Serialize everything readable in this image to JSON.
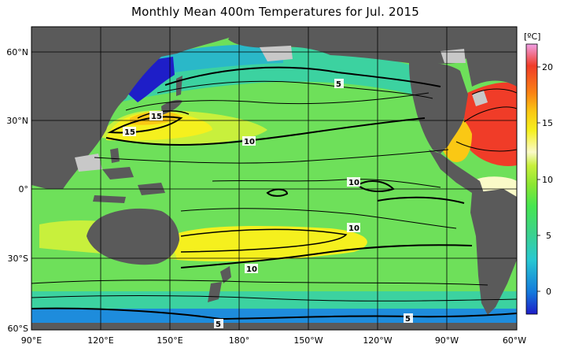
{
  "title": "Monthly Mean 400m Temperatures for Jul. 2015",
  "colorbar": {
    "unit": "[ºC]",
    "ticks": [
      "20",
      "15",
      "10",
      "5",
      "0"
    ],
    "range": [
      -2,
      22
    ],
    "colors": [
      "#1e1ec8",
      "#1478dc",
      "#28c8d2",
      "#3cd28c",
      "#46e650",
      "#8ce632",
      "#c8f03c",
      "#fafac8",
      "#f5f01e",
      "#fac814",
      "#fa8214",
      "#f03c28",
      "#f0a0e6"
    ]
  },
  "axes": {
    "lon_labels": [
      "90°E",
      "120°E",
      "150°E",
      "180°",
      "150°W",
      "120°W",
      "90°W",
      "60°W"
    ],
    "lat_labels": [
      "60°N",
      "30°N",
      "0°",
      "30°S",
      "60°S"
    ]
  },
  "contour_labels": [
    "5",
    "15",
    "15",
    "10",
    "10",
    "10",
    "10",
    "5",
    "5"
  ],
  "colors": {
    "land": "#5a5a5a",
    "no_data": "#c8c8c8",
    "grid": "#000000"
  }
}
